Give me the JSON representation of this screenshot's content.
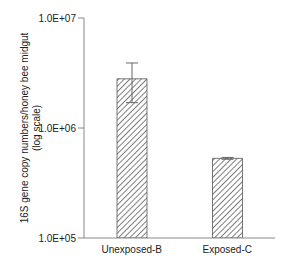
{
  "chart_data": {
    "type": "bar",
    "categories": [
      "Unexposed-B",
      "Exposed-C"
    ],
    "values": [
      2800000,
      530000
    ],
    "errors": [
      1100000,
      10000
    ],
    "ylabel": "16S gene copy numbers/honey bee midgut (log scale)",
    "log": "y",
    "ylim": [
      100000,
      10000000
    ],
    "yticks": [
      {
        "value": 100000,
        "label": "1.0E+05"
      },
      {
        "value": 1000000,
        "label": "1.0E+06"
      },
      {
        "value": 10000000,
        "label": "1.0E+07"
      }
    ],
    "color": "#555555",
    "grid": false
  }
}
